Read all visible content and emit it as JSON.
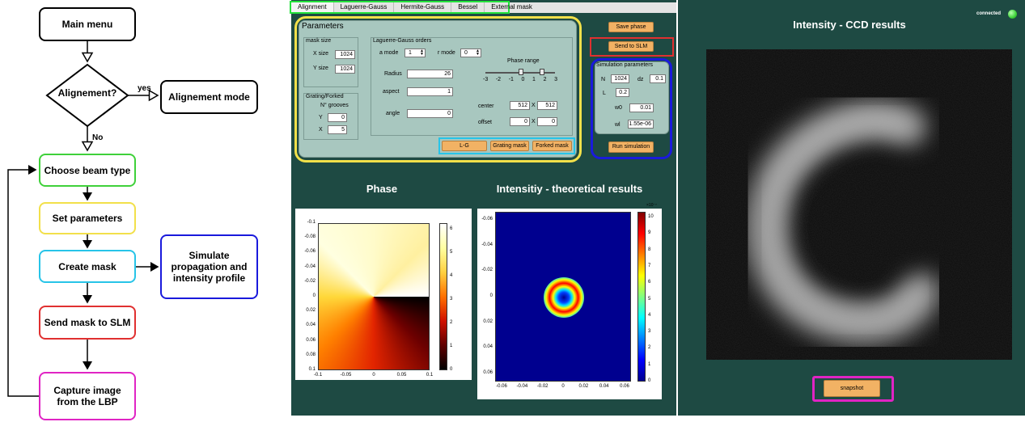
{
  "flowchart": {
    "main_menu": "Main menu",
    "alignment_q": "Alignement?",
    "yes": "yes",
    "no": "No",
    "alignment_mode": "Alignement mode",
    "choose_beam": "Choose beam type",
    "set_params": "Set parameters",
    "create_mask": "Create mask",
    "simulate": "Simulate propagation and intensity profile",
    "send_mask": "Send mask to SLM",
    "capture": "Capture image from the LBP"
  },
  "tabs": [
    "Alignment",
    "Laguerre-Gauss",
    "Hermite-Gauss",
    "Bessel",
    "External mask"
  ],
  "params": {
    "title": "Parameters",
    "mask_size": {
      "title": "mask size",
      "x_label": "X size",
      "x_value": "1024",
      "y_label": "Y size",
      "y_value": "1024"
    },
    "grating": {
      "title": "Grating/Forked",
      "grooves_label": "N° grooves",
      "y_label": "Y",
      "y_value": "0",
      "x_label": "X",
      "x_value": "5"
    },
    "lg": {
      "title": "Laguerre-Gauss orders",
      "a_mode_label": "a mode",
      "a_mode_value": "1",
      "r_mode_label": "r mode",
      "r_mode_value": "0",
      "phase_range_label": "Phase range",
      "phase_ticks": [
        "-3",
        "-2",
        "-1",
        "0",
        "1",
        "2",
        "3"
      ],
      "radius_label": "Radius",
      "radius_value": "26",
      "aspect_label": "aspect",
      "aspect_value": "1",
      "angle_label": "angle",
      "angle_value": "0",
      "center_label": "center",
      "center_x": "512",
      "center_sep": "X",
      "center_y": "512",
      "offset_label": "offset",
      "offset_x": "0",
      "offset_sep": "X",
      "offset_y": "0"
    },
    "buttons": {
      "lg": "L-G",
      "grating": "Grating mask",
      "forked": "Forked mask"
    }
  },
  "right_controls": {
    "save_phase": "Save phase",
    "send_slm": "Send to SLM",
    "sim_title": "Simulation parameters",
    "n_label": "N",
    "n_value": "1024",
    "dz_label": "dz",
    "dz_value": "0.1",
    "l_label": "L",
    "l_value": "0.2",
    "w0_label": "w0",
    "w0_value": "0.01",
    "wl_label": "wl",
    "wl_value": "1.55e-06",
    "run_sim": "Run simulation"
  },
  "phase_plot": {
    "title": "Phase",
    "y_ticks": [
      "-0.1",
      "-0.08",
      "-0.06",
      "-0.04",
      "-0.02",
      "0",
      "0.02",
      "0.04",
      "0.06",
      "0.08",
      "0.1"
    ],
    "x_ticks": [
      "-0.1",
      "-0.05",
      "0",
      "0.05",
      "0.1"
    ],
    "cbar_ticks": [
      "6",
      "5",
      "4",
      "3",
      "2",
      "1",
      "0"
    ]
  },
  "intensity_plot": {
    "title": "Intensitiy - theoretical results",
    "y_ticks": [
      "-0.06",
      "-0.04",
      "-0.02",
      "0",
      "0.02",
      "0.04",
      "0.06"
    ],
    "x_ticks": [
      "-0.06",
      "-0.04",
      "-0.02",
      "0",
      "0.02",
      "0.04",
      "0.06"
    ],
    "cbar_ticks": [
      "10",
      "9",
      "8",
      "7",
      "6",
      "5",
      "4",
      "3",
      "2",
      "1",
      "0"
    ],
    "cbar_exp": "×10⁻⁷"
  },
  "ccd": {
    "title": "Intensity - CCD results",
    "status": "connected",
    "status_color": "#3fd13a",
    "snapshot": "snapshot"
  },
  "colors": {
    "panel_bg": "#1e4a43",
    "orange_btn": "#f2b264",
    "highlight_green": "#23e23b",
    "highlight_yellow": "#f2e04a",
    "highlight_red": "#e03030",
    "highlight_blue": "#1a1adc",
    "highlight_cyan": "#27c4e8",
    "highlight_magenta": "#e024c4"
  }
}
